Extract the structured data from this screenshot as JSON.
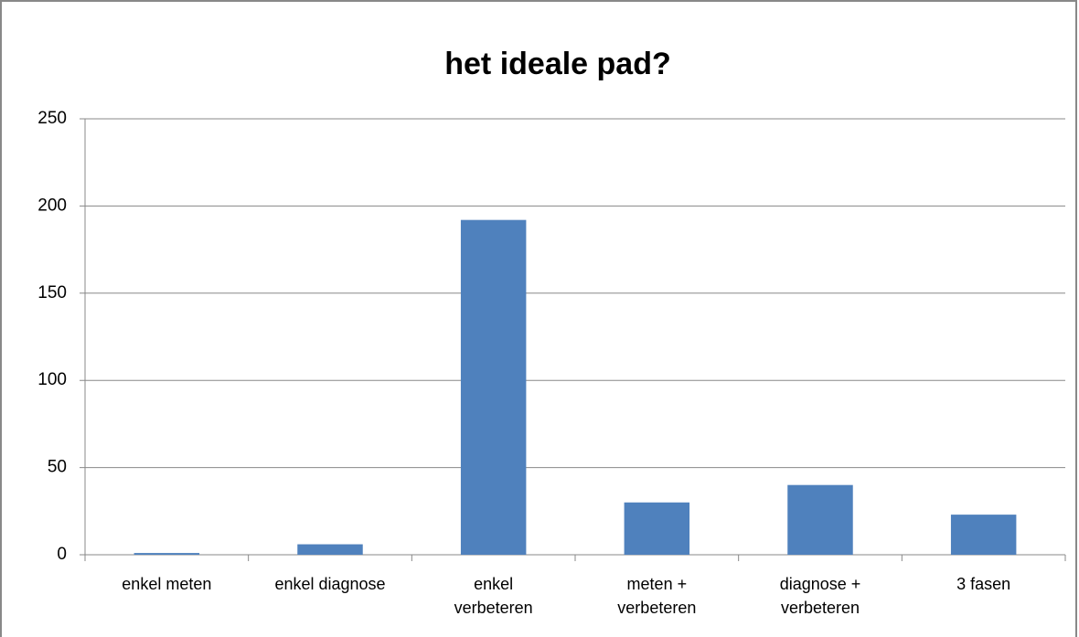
{
  "chart_data": {
    "type": "bar",
    "title": "het ideale pad?",
    "categories": [
      "enkel meten",
      "enkel diagnose",
      "enkel verbeteren",
      "meten + verbeteren",
      "diagnose + verbeteren",
      "3 fasen"
    ],
    "values": [
      1,
      6,
      192,
      30,
      40,
      23
    ],
    "color": "#4f81bd",
    "ylim": [
      0,
      250
    ],
    "yticks": [
      0,
      50,
      100,
      150,
      200,
      250
    ],
    "grid": true
  }
}
